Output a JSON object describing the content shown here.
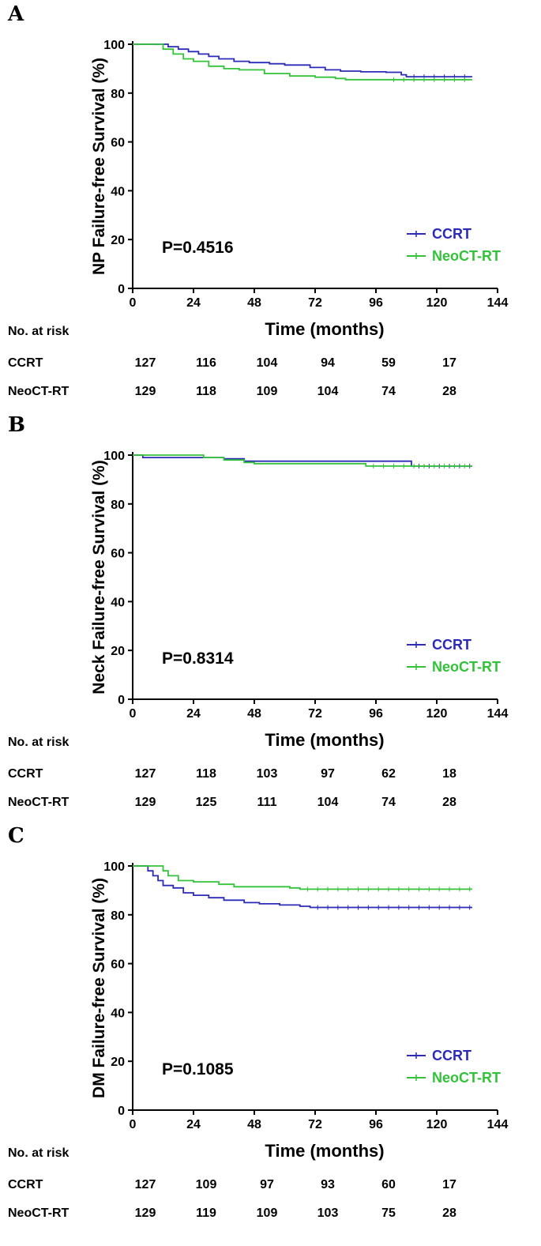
{
  "colors": {
    "ccrt": "#2b2bb8",
    "neoct": "#33c23a",
    "axis": "#000000"
  },
  "chart_data": [
    {
      "type": "line",
      "panel": "A",
      "title": "",
      "xlabel": "Time (months)",
      "ylabel": "NP Failure-free Survival (%)",
      "xlim": [
        0,
        144
      ],
      "ylim": [
        0,
        100
      ],
      "xticks": [
        0,
        24,
        48,
        72,
        96,
        120,
        144
      ],
      "yticks": [
        0,
        20,
        40,
        60,
        80,
        100
      ],
      "p_value": "P=0.4516",
      "legend": [
        "CCRT",
        "NeoCT-RT"
      ],
      "legend_position": "bottom-right",
      "series": [
        {
          "name": "CCRT",
          "color_key": "ccrt",
          "x": [
            0,
            10,
            14,
            18,
            22,
            26,
            30,
            34,
            40,
            46,
            54,
            60,
            70,
            76,
            82,
            90,
            100,
            106,
            108,
            134
          ],
          "y": [
            100,
            100,
            99,
            98,
            97,
            96,
            95,
            94,
            93,
            92.5,
            92,
            91.5,
            90.5,
            89.5,
            89,
            88.7,
            88.5,
            87.5,
            86.7,
            86.7
          ]
        },
        {
          "name": "NeoCT-RT",
          "color_key": "neoct",
          "x": [
            0,
            8,
            12,
            16,
            20,
            24,
            30,
            36,
            42,
            52,
            62,
            72,
            80,
            84,
            100,
            134
          ],
          "y": [
            100,
            100,
            98,
            96,
            94,
            93,
            91,
            90,
            89.5,
            88,
            87,
            86.5,
            86,
            85.5,
            85.5,
            85.5
          ]
        }
      ],
      "risk_table": {
        "header": "No. at risk",
        "times": [
          0,
          24,
          48,
          72,
          96,
          120
        ],
        "rows": [
          {
            "label": "CCRT",
            "values": [
              "127",
              "116",
              "104",
              "94",
              "59",
              "17"
            ]
          },
          {
            "label": "NeoCT-RT",
            "values": [
              "129",
              "118",
              "109",
              "104",
              "74",
              "28"
            ]
          }
        ]
      }
    },
    {
      "type": "line",
      "panel": "B",
      "title": "",
      "xlabel": "Time (months)",
      "ylabel": "Neck Failure-free Survival (%)",
      "xlim": [
        0,
        144
      ],
      "ylim": [
        0,
        100
      ],
      "xticks": [
        0,
        24,
        48,
        72,
        96,
        120,
        144
      ],
      "yticks": [
        0,
        20,
        40,
        60,
        80,
        100
      ],
      "p_value": "P=0.8314",
      "legend": [
        "CCRT",
        "NeoCT-RT"
      ],
      "legend_position": "bottom-right",
      "series": [
        {
          "name": "CCRT",
          "color_key": "ccrt",
          "x": [
            0,
            4,
            30,
            36,
            44,
            108,
            110,
            134
          ],
          "y": [
            100,
            99,
            99,
            98.5,
            97.5,
            97.5,
            95.5,
            95.5
          ]
        },
        {
          "name": "NeoCT-RT",
          "color_key": "neoct",
          "x": [
            0,
            20,
            28,
            36,
            44,
            48,
            88,
            92,
            134
          ],
          "y": [
            100,
            100,
            99,
            98,
            97,
            96.5,
            96.5,
            95.5,
            95.5
          ]
        }
      ],
      "risk_table": {
        "header": "No. at risk",
        "times": [
          0,
          24,
          48,
          72,
          96,
          120
        ],
        "rows": [
          {
            "label": "CCRT",
            "values": [
              "127",
              "118",
              "103",
              "97",
              "62",
              "18"
            ]
          },
          {
            "label": "NeoCT-RT",
            "values": [
              "129",
              "125",
              "111",
              "104",
              "74",
              "28"
            ]
          }
        ]
      }
    },
    {
      "type": "line",
      "panel": "C",
      "title": "",
      "xlabel": "Time (months)",
      "ylabel": "DM Failure-free Survival (%)",
      "xlim": [
        0,
        144
      ],
      "ylim": [
        0,
        100
      ],
      "xticks": [
        0,
        24,
        48,
        72,
        96,
        120,
        144
      ],
      "yticks": [
        0,
        20,
        40,
        60,
        80,
        100
      ],
      "p_value": "P=0.1085",
      "legend": [
        "CCRT",
        "NeoCT-RT"
      ],
      "legend_position": "bottom-right",
      "series": [
        {
          "name": "CCRT",
          "color_key": "ccrt",
          "x": [
            0,
            4,
            6,
            8,
            10,
            12,
            16,
            20,
            24,
            30,
            36,
            44,
            50,
            58,
            66,
            70,
            134
          ],
          "y": [
            100,
            100,
            98,
            96,
            94,
            92,
            91,
            89,
            88,
            87,
            86,
            85,
            84.5,
            84,
            83.5,
            83,
            83
          ]
        },
        {
          "name": "NeoCT-RT",
          "color_key": "neoct",
          "x": [
            0,
            10,
            12,
            14,
            18,
            24,
            34,
            40,
            62,
            66,
            134
          ],
          "y": [
            100,
            100,
            98,
            96,
            94,
            93.5,
            92.5,
            91.5,
            91,
            90.5,
            90.5
          ]
        }
      ],
      "risk_table": {
        "header": "No. at risk",
        "times": [
          0,
          24,
          48,
          72,
          96,
          120
        ],
        "rows": [
          {
            "label": "CCRT",
            "values": [
              "127",
              "109",
              "97",
              "93",
              "60",
              "17"
            ]
          },
          {
            "label": "NeoCT-RT",
            "values": [
              "129",
              "119",
              "109",
              "103",
              "75",
              "28"
            ]
          }
        ]
      }
    }
  ]
}
